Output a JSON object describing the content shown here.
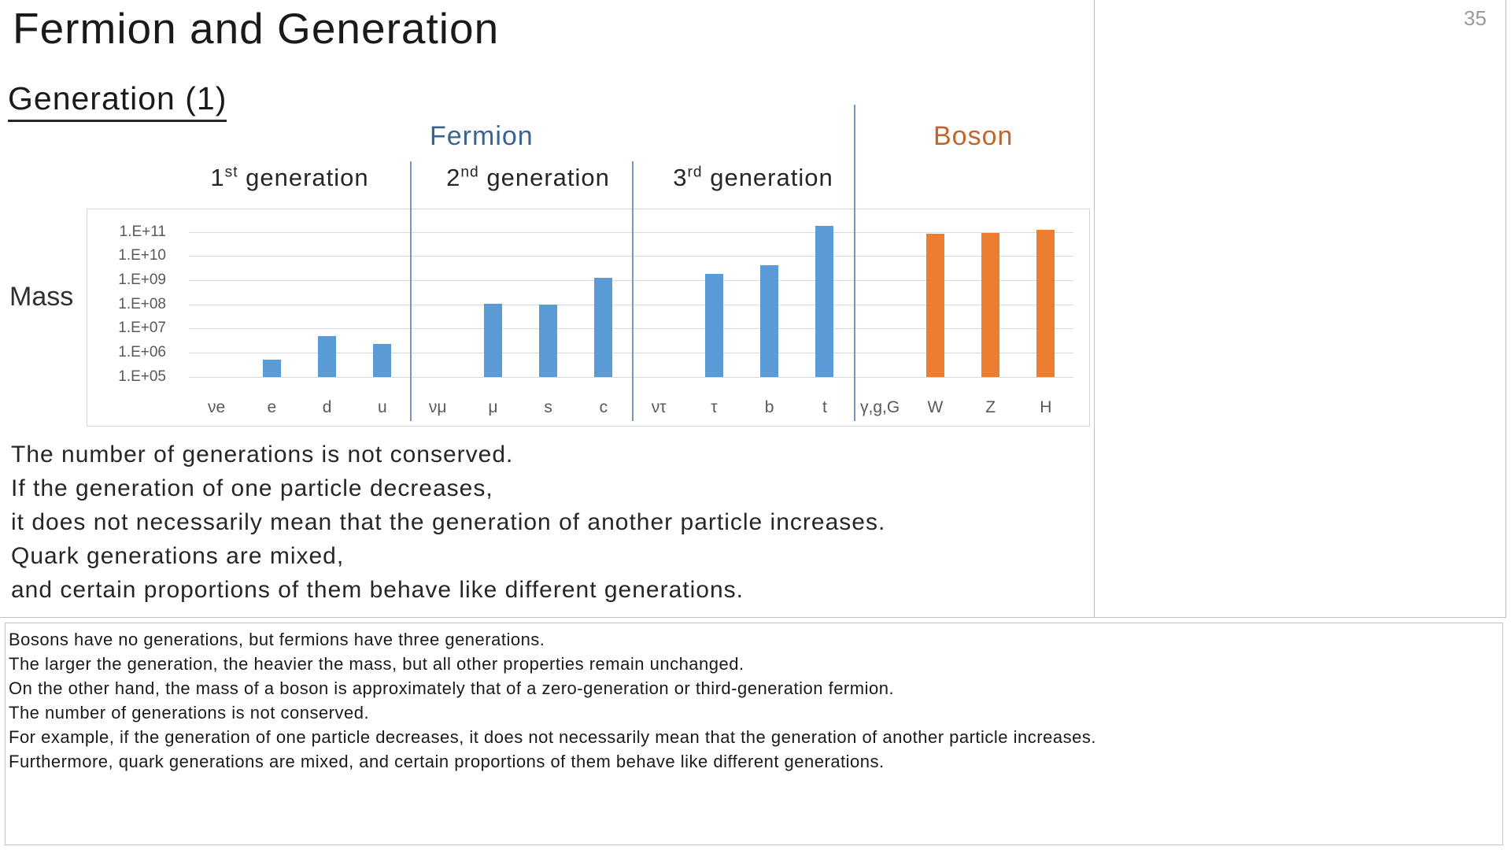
{
  "page": {
    "number": "35"
  },
  "slide": {
    "title": "Fermion and Generation",
    "heading": "Generation (1)",
    "mass_label": "Mass",
    "group_labels": {
      "fermion": "Fermion",
      "boson": "Boson"
    },
    "group_label_colors": {
      "fermion": "#3A6391",
      "boson": "#C0662B"
    },
    "generation_labels": [
      {
        "num": "1",
        "sup": "st",
        "rest": " generation"
      },
      {
        "num": "2",
        "sup": "nd",
        "rest": " generation"
      },
      {
        "num": "3",
        "sup": "rd",
        "rest": " generation"
      }
    ],
    "body_lines": [
      "The number of generations is not conserved.",
      "If the generation of one particle decreases,",
      "it does not necessarily mean that the generation of another particle increases.",
      "Quark generations are mixed,",
      "and certain proportions of them behave like different generations."
    ]
  },
  "chart_data": {
    "type": "bar",
    "title": "",
    "ylabel": "Mass",
    "xlabel": "",
    "y_scale": "log",
    "ylim": [
      100000,
      1000000000000
    ],
    "y_ticks": [
      "1.E+11",
      "1.E+10",
      "1.E+09",
      "1.E+08",
      "1.E+07",
      "1.E+06",
      "1.E+05"
    ],
    "grid": true,
    "legend_position": "none",
    "categories": [
      "νe",
      "e",
      "d",
      "u",
      "νμ",
      "μ",
      "s",
      "c",
      "ντ",
      "τ",
      "b",
      "t",
      "γ,g,G",
      "W",
      "Z",
      "H"
    ],
    "values": [
      null,
      510000.0,
      4700000.0,
      2200000.0,
      null,
      106000000.0,
      95000000.0,
      1270000000.0,
      null,
      1780000000.0,
      4180000000.0,
      173000000000.0,
      null,
      80000000000.0,
      91000000000.0,
      125000000000.0
    ],
    "series": [
      {
        "name": "Fermion",
        "color": "#5B9BD5"
      },
      {
        "name": "Boson",
        "color": "#ED7D31"
      }
    ],
    "bar_series": [
      0,
      0,
      0,
      0,
      0,
      0,
      0,
      0,
      0,
      0,
      0,
      0,
      1,
      1,
      1,
      1
    ],
    "group_separators_after": [
      "u",
      "c",
      "t"
    ]
  },
  "notes": {
    "lines": [
      "Bosons have no generations, but fermions have three generations.",
      "The larger the generation, the heavier the mass, but all other properties remain unchanged.",
      "On the other hand, the mass of a boson is approximately that of a zero-generation or third-generation fermion.",
      "The number of generations is not conserved.",
      "For example, if the generation of one particle decreases, it does not necessarily mean that the generation of another particle increases.",
      "Furthermore, quark generations are mixed, and certain proportions of them behave like different generations."
    ]
  }
}
